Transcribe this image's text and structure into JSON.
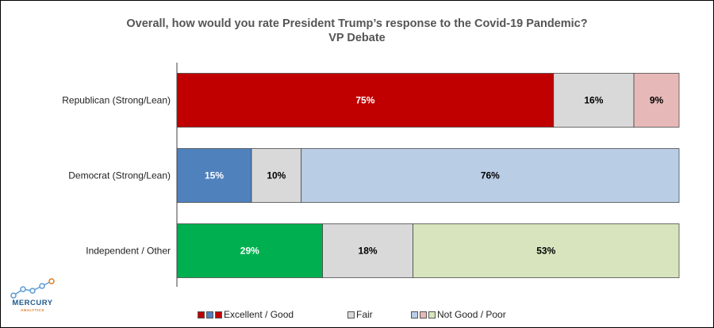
{
  "title_line1": "Overall, how would you rate President Trump’s response to the Covid-19 Pandemic?",
  "title_line2": "VP Debate",
  "chart_data": {
    "type": "bar",
    "orientation": "horizontal",
    "stacked": true,
    "percent_stacked": true,
    "categories": [
      "Republican (Strong/Lean)",
      "Democrat (Strong/Lean)",
      "Independent / Other"
    ],
    "series": [
      {
        "name": "Excellent / Good",
        "values": [
          75,
          15,
          29
        ],
        "colors": [
          "#c00000",
          "#4f81bd",
          "#00b050"
        ],
        "label_color": "#ffffff"
      },
      {
        "name": "Fair",
        "values": [
          16,
          10,
          18
        ],
        "colors": [
          "#d9d9d9",
          "#d9d9d9",
          "#d9d9d9"
        ],
        "label_color": "#000000"
      },
      {
        "name": "Not Good / Poor",
        "values": [
          9,
          76,
          53
        ],
        "colors": [
          "#e6b9b8",
          "#b9cde5",
          "#d7e4bd"
        ],
        "label_color": "#000000"
      }
    ],
    "labels": [
      [
        "75%",
        "16%",
        "9%"
      ],
      [
        "15%",
        "10%",
        "76%"
      ],
      [
        "29%",
        "18%",
        "53%"
      ]
    ],
    "legend_position": "bottom",
    "grid": false
  },
  "legend": [
    {
      "label": "Excellent / Good",
      "swatches": [
        "#c00000",
        "#4f81bd",
        "#c00000"
      ]
    },
    {
      "label": "Fair",
      "swatches": [
        "#d9d9d9"
      ]
    },
    {
      "label": "Not Good / Poor",
      "swatches": [
        "#b9cde5",
        "#e6b9b8",
        "#d7e4bd"
      ]
    }
  ],
  "logo": {
    "name": "MERCURY",
    "sub": "ANALYTICS",
    "icon": "line-graph-logo-icon"
  }
}
